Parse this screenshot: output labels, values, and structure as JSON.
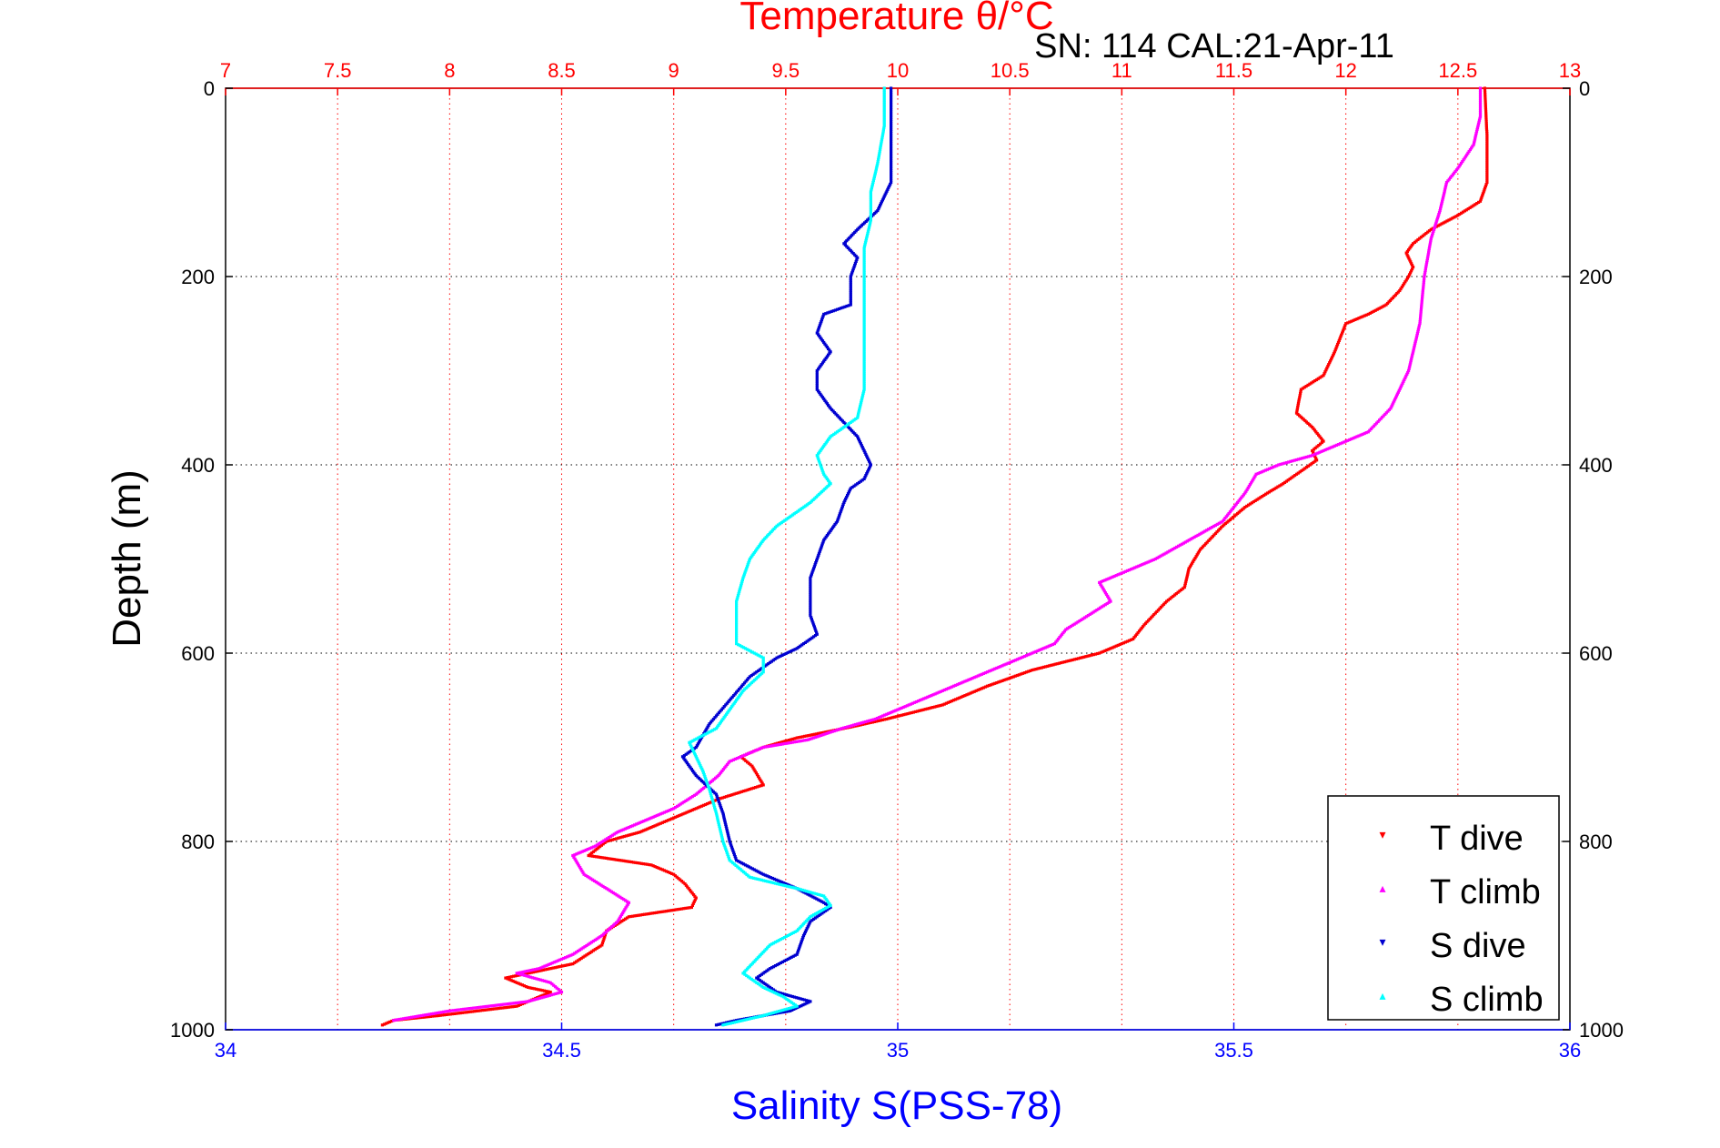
{
  "chart_data": {
    "type": "scatter",
    "title": "SN: 114  CAL:21-Apr-11",
    "top_axis": {
      "label": "Temperature θ/°C",
      "range": [
        7,
        13
      ],
      "ticks": [
        "7",
        "7.5",
        "8",
        "8.5",
        "9",
        "9.5",
        "10",
        "10.5",
        "11",
        "11.5",
        "12",
        "12.5",
        "13"
      ],
      "color": "#ff0000"
    },
    "bottom_axis": {
      "label": "Salinity S(PSS-78)",
      "range": [
        34,
        36
      ],
      "ticks": [
        "34",
        "34.5",
        "35",
        "35.5",
        "36"
      ],
      "color": "#0000ff"
    },
    "y_axis": {
      "label": "Depth (m)",
      "range": [
        0,
        1000
      ],
      "reversed": true,
      "ticks": [
        "0",
        "200",
        "400",
        "600",
        "800",
        "1000"
      ]
    },
    "grid": true,
    "legend": {
      "placement": "bottom-right",
      "entries": [
        "T dive",
        "T climb",
        "S dive",
        "S climb"
      ]
    },
    "series": [
      {
        "name": "T dive",
        "axis": "temperature",
        "color": "#ff0000",
        "marker": "▾",
        "points": [
          [
            12.62,
            0
          ],
          [
            12.63,
            50
          ],
          [
            12.63,
            100
          ],
          [
            12.6,
            120
          ],
          [
            12.5,
            135
          ],
          [
            12.38,
            150
          ],
          [
            12.3,
            165
          ],
          [
            12.27,
            175
          ],
          [
            12.3,
            190
          ],
          [
            12.28,
            200
          ],
          [
            12.24,
            215
          ],
          [
            12.18,
            230
          ],
          [
            12.1,
            240
          ],
          [
            12.0,
            250
          ],
          [
            11.95,
            280
          ],
          [
            11.9,
            305
          ],
          [
            11.8,
            320
          ],
          [
            11.78,
            345
          ],
          [
            11.85,
            360
          ],
          [
            11.9,
            375
          ],
          [
            11.85,
            385
          ],
          [
            11.87,
            395
          ],
          [
            11.78,
            410
          ],
          [
            11.72,
            420
          ],
          [
            11.65,
            430
          ],
          [
            11.55,
            445
          ],
          [
            11.45,
            465
          ],
          [
            11.35,
            490
          ],
          [
            11.3,
            510
          ],
          [
            11.28,
            530
          ],
          [
            11.2,
            545
          ],
          [
            11.1,
            570
          ],
          [
            11.05,
            585
          ],
          [
            10.9,
            600
          ],
          [
            10.6,
            618
          ],
          [
            10.4,
            635
          ],
          [
            10.2,
            655
          ],
          [
            9.95,
            670
          ],
          [
            9.8,
            678
          ],
          [
            9.55,
            690
          ],
          [
            9.4,
            700
          ],
          [
            9.3,
            710
          ],
          [
            9.35,
            720
          ],
          [
            9.4,
            740
          ],
          [
            9.2,
            755
          ],
          [
            9.05,
            770
          ],
          [
            8.85,
            790
          ],
          [
            8.7,
            800
          ],
          [
            8.62,
            815
          ],
          [
            8.9,
            825
          ],
          [
            9.0,
            835
          ],
          [
            9.05,
            845
          ],
          [
            9.1,
            860
          ],
          [
            9.08,
            870
          ],
          [
            8.8,
            880
          ],
          [
            8.7,
            895
          ],
          [
            8.68,
            910
          ],
          [
            8.55,
            930
          ],
          [
            8.25,
            945
          ],
          [
            8.35,
            955
          ],
          [
            8.45,
            960
          ],
          [
            8.3,
            975
          ],
          [
            7.95,
            985
          ],
          [
            7.75,
            990
          ],
          [
            7.7,
            995
          ]
        ]
      },
      {
        "name": "T climb",
        "axis": "temperature",
        "color": "#ff00ff",
        "marker": "▴",
        "points": [
          [
            12.6,
            0
          ],
          [
            12.6,
            30
          ],
          [
            12.57,
            60
          ],
          [
            12.5,
            85
          ],
          [
            12.45,
            100
          ],
          [
            12.42,
            130
          ],
          [
            12.38,
            160
          ],
          [
            12.35,
            200
          ],
          [
            12.33,
            250
          ],
          [
            12.28,
            300
          ],
          [
            12.2,
            340
          ],
          [
            12.1,
            365
          ],
          [
            11.95,
            380
          ],
          [
            11.85,
            390
          ],
          [
            11.7,
            400
          ],
          [
            11.6,
            410
          ],
          [
            11.55,
            430
          ],
          [
            11.45,
            460
          ],
          [
            11.3,
            480
          ],
          [
            11.15,
            500
          ],
          [
            11.0,
            515
          ],
          [
            10.9,
            525
          ],
          [
            10.95,
            545
          ],
          [
            10.85,
            560
          ],
          [
            10.75,
            575
          ],
          [
            10.7,
            590
          ],
          [
            10.6,
            600
          ],
          [
            10.45,
            615
          ],
          [
            10.25,
            635
          ],
          [
            10.05,
            655
          ],
          [
            9.9,
            670
          ],
          [
            9.75,
            680
          ],
          [
            9.6,
            692
          ],
          [
            9.4,
            700
          ],
          [
            9.25,
            715
          ],
          [
            9.2,
            730
          ],
          [
            9.1,
            750
          ],
          [
            9.0,
            765
          ],
          [
            8.85,
            780
          ],
          [
            8.75,
            790
          ],
          [
            8.65,
            805
          ],
          [
            8.55,
            815
          ],
          [
            8.6,
            835
          ],
          [
            8.7,
            850
          ],
          [
            8.8,
            865
          ],
          [
            8.75,
            885
          ],
          [
            8.68,
            900
          ],
          [
            8.55,
            920
          ],
          [
            8.4,
            935
          ],
          [
            8.3,
            940
          ],
          [
            8.45,
            950
          ],
          [
            8.5,
            960
          ],
          [
            8.35,
            970
          ],
          [
            8.0,
            980
          ],
          [
            7.75,
            990
          ]
        ]
      },
      {
        "name": "S dive",
        "axis": "salinity",
        "color": "#0000d0",
        "marker": "▾",
        "points": [
          [
            34.99,
            0
          ],
          [
            34.99,
            50
          ],
          [
            34.99,
            100
          ],
          [
            34.97,
            130
          ],
          [
            34.94,
            150
          ],
          [
            34.92,
            165
          ],
          [
            34.94,
            180
          ],
          [
            34.93,
            200
          ],
          [
            34.93,
            230
          ],
          [
            34.89,
            240
          ],
          [
            34.88,
            260
          ],
          [
            34.9,
            280
          ],
          [
            34.88,
            300
          ],
          [
            34.88,
            320
          ],
          [
            34.9,
            340
          ],
          [
            34.92,
            355
          ],
          [
            34.94,
            370
          ],
          [
            34.95,
            385
          ],
          [
            34.96,
            400
          ],
          [
            34.95,
            415
          ],
          [
            34.93,
            425
          ],
          [
            34.92,
            440
          ],
          [
            34.91,
            460
          ],
          [
            34.89,
            480
          ],
          [
            34.88,
            500
          ],
          [
            34.87,
            520
          ],
          [
            34.87,
            540
          ],
          [
            34.87,
            560
          ],
          [
            34.88,
            580
          ],
          [
            34.85,
            595
          ],
          [
            34.82,
            605
          ],
          [
            34.78,
            625
          ],
          [
            34.75,
            650
          ],
          [
            34.72,
            675
          ],
          [
            34.7,
            700
          ],
          [
            34.68,
            710
          ],
          [
            34.7,
            730
          ],
          [
            34.73,
            750
          ],
          [
            34.74,
            770
          ],
          [
            34.75,
            800
          ],
          [
            34.76,
            820
          ],
          [
            34.8,
            835
          ],
          [
            34.85,
            850
          ],
          [
            34.89,
            865
          ],
          [
            34.9,
            870
          ],
          [
            34.87,
            885
          ],
          [
            34.86,
            900
          ],
          [
            34.85,
            920
          ],
          [
            34.81,
            935
          ],
          [
            34.79,
            945
          ],
          [
            34.82,
            960
          ],
          [
            34.87,
            970
          ],
          [
            34.84,
            980
          ],
          [
            34.76,
            990
          ],
          [
            34.73,
            995
          ]
        ]
      },
      {
        "name": "S climb",
        "axis": "salinity",
        "color": "#00ffff",
        "marker": "▴",
        "points": [
          [
            34.98,
            0
          ],
          [
            34.98,
            40
          ],
          [
            34.97,
            80
          ],
          [
            34.96,
            110
          ],
          [
            34.96,
            140
          ],
          [
            34.95,
            170
          ],
          [
            34.95,
            200
          ],
          [
            34.95,
            240
          ],
          [
            34.95,
            280
          ],
          [
            34.95,
            320
          ],
          [
            34.94,
            350
          ],
          [
            34.9,
            370
          ],
          [
            34.88,
            390
          ],
          [
            34.89,
            410
          ],
          [
            34.9,
            420
          ],
          [
            34.87,
            440
          ],
          [
            34.82,
            465
          ],
          [
            34.8,
            480
          ],
          [
            34.78,
            500
          ],
          [
            34.77,
            520
          ],
          [
            34.76,
            545
          ],
          [
            34.76,
            570
          ],
          [
            34.76,
            590
          ],
          [
            34.8,
            605
          ],
          [
            34.8,
            620
          ],
          [
            34.77,
            640
          ],
          [
            34.75,
            660
          ],
          [
            34.73,
            680
          ],
          [
            34.69,
            695
          ],
          [
            34.7,
            710
          ],
          [
            34.71,
            725
          ],
          [
            34.72,
            745
          ],
          [
            34.73,
            770
          ],
          [
            34.74,
            800
          ],
          [
            34.75,
            820
          ],
          [
            34.78,
            838
          ],
          [
            34.85,
            850
          ],
          [
            34.89,
            858
          ],
          [
            34.9,
            868
          ],
          [
            34.87,
            880
          ],
          [
            34.85,
            895
          ],
          [
            34.81,
            910
          ],
          [
            34.79,
            925
          ],
          [
            34.77,
            940
          ],
          [
            34.8,
            955
          ],
          [
            34.83,
            965
          ],
          [
            34.85,
            975
          ],
          [
            34.8,
            985
          ],
          [
            34.74,
            995
          ]
        ]
      }
    ]
  }
}
